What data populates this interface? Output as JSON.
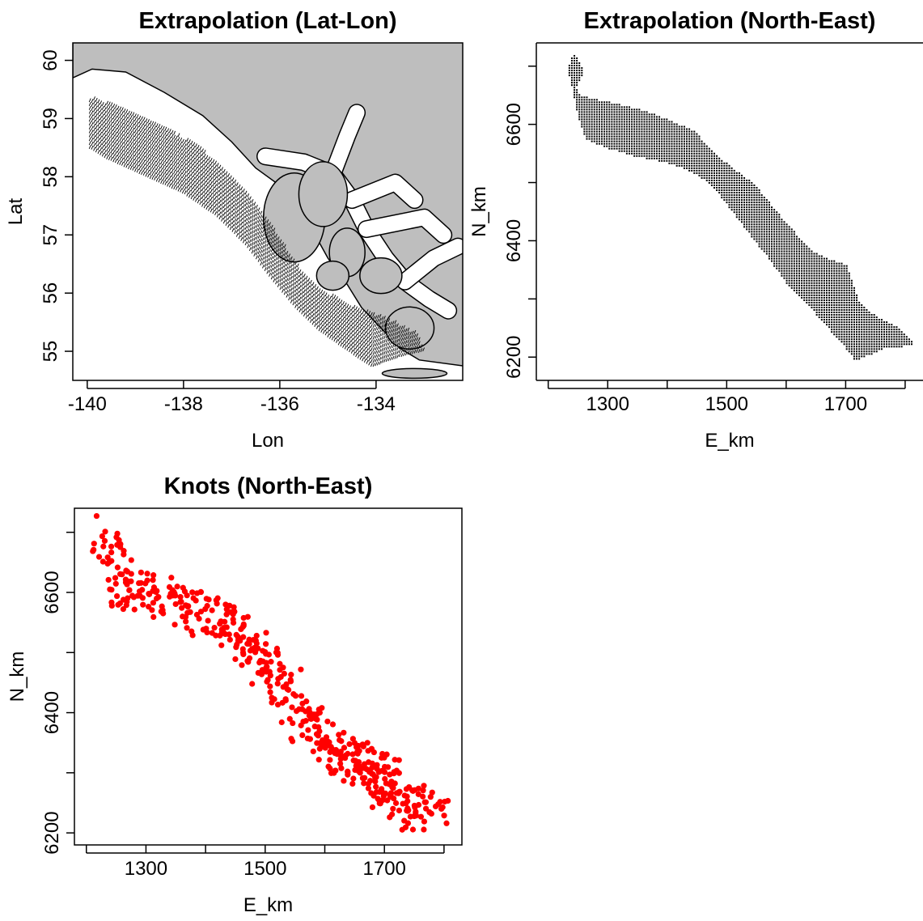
{
  "figure": {
    "background": "#ffffff",
    "land_color": "#bebebe",
    "fjord_color": "#ffffff",
    "extrapolation_color": "#000000",
    "knot_color": "#ff0000"
  },
  "chart_data": [
    {
      "id": "latlon",
      "type": "map",
      "title": "Extrapolation (Lat-Lon)",
      "xlabel": "Lon",
      "ylabel": "Lat",
      "xlim": [
        -140.3,
        -132.2
      ],
      "ylim": [
        54.5,
        60.3
      ],
      "xticks": [
        -140,
        -138,
        -136,
        -134
      ],
      "xtick_labels": [
        "-140",
        "-138",
        "-136",
        "-134"
      ],
      "yticks": [
        55,
        56,
        57,
        58,
        59,
        60
      ],
      "ytick_labels": [
        "55",
        "56",
        "57",
        "58",
        "59",
        "60"
      ],
      "description_free": true,
      "coastline": [
        [
          -140.3,
          59.7
        ],
        [
          -139.9,
          59.85
        ],
        [
          -139.2,
          59.8
        ],
        [
          -138.4,
          59.45
        ],
        [
          -137.6,
          59.05
        ],
        [
          -137.0,
          58.6
        ],
        [
          -136.5,
          58.15
        ],
        [
          -136.0,
          57.85
        ],
        [
          -135.6,
          57.5
        ],
        [
          -135.3,
          57.05
        ],
        [
          -135.0,
          56.6
        ],
        [
          -134.6,
          56.15
        ],
        [
          -134.3,
          55.75
        ],
        [
          -133.9,
          55.4
        ],
        [
          -133.5,
          55.05
        ],
        [
          -133.1,
          54.85
        ],
        [
          -132.2,
          54.75
        ]
      ],
      "domain_outline": [
        [
          -140.0,
          59.35
        ],
        [
          -139.4,
          59.2
        ],
        [
          -138.6,
          58.9
        ],
        [
          -137.8,
          58.55
        ],
        [
          -137.2,
          58.15
        ],
        [
          -136.7,
          57.7
        ],
        [
          -136.3,
          57.3
        ],
        [
          -136.0,
          56.9
        ],
        [
          -135.7,
          56.5
        ],
        [
          -135.2,
          56.05
        ],
        [
          -134.5,
          55.75
        ],
        [
          -133.8,
          55.55
        ],
        [
          -133.2,
          55.3
        ],
        [
          -133.0,
          55.0
        ],
        [
          -133.5,
          54.9
        ],
        [
          -134.1,
          54.72
        ],
        [
          -134.6,
          55.0
        ],
        [
          -135.2,
          55.35
        ],
        [
          -135.7,
          55.75
        ],
        [
          -136.2,
          56.25
        ],
        [
          -136.7,
          56.8
        ],
        [
          -137.3,
          57.3
        ],
        [
          -138.0,
          57.7
        ],
        [
          -138.8,
          58.0
        ],
        [
          -139.6,
          58.3
        ],
        [
          -140.0,
          58.5
        ]
      ]
    },
    {
      "id": "ne",
      "type": "scatter",
      "title": "Extrapolation (North-East)",
      "xlabel": "E_km",
      "ylabel": "N_km",
      "xlim": [
        1180,
        1830
      ],
      "ylim": [
        6160,
        6740
      ],
      "xticks": [
        1200,
        1300,
        1400,
        1500,
        1600,
        1700,
        1800
      ],
      "xtick_labels": [
        "",
        "1300",
        "",
        "1500",
        "",
        "1700",
        ""
      ],
      "yticks": [
        6200,
        6300,
        6400,
        6500,
        6600,
        6700
      ],
      "ytick_labels": [
        "6200",
        "",
        "6400",
        "",
        "6600",
        ""
      ],
      "domain_outline": [
        [
          1232,
          6695
        ],
        [
          1240,
          6725
        ],
        [
          1252,
          6708
        ],
        [
          1258,
          6690
        ],
        [
          1245,
          6665
        ],
        [
          1255,
          6650
        ],
        [
          1300,
          6640
        ],
        [
          1360,
          6625
        ],
        [
          1400,
          6610
        ],
        [
          1445,
          6590
        ],
        [
          1470,
          6560
        ],
        [
          1510,
          6525
        ],
        [
          1545,
          6500
        ],
        [
          1580,
          6455
        ],
        [
          1610,
          6420
        ],
        [
          1640,
          6385
        ],
        [
          1670,
          6370
        ],
        [
          1700,
          6360
        ],
        [
          1720,
          6300
        ],
        [
          1745,
          6275
        ],
        [
          1790,
          6250
        ],
        [
          1815,
          6225
        ],
        [
          1790,
          6218
        ],
        [
          1760,
          6215
        ],
        [
          1740,
          6205
        ],
        [
          1715,
          6195
        ],
        [
          1700,
          6215
        ],
        [
          1670,
          6250
        ],
        [
          1640,
          6285
        ],
        [
          1605,
          6320
        ],
        [
          1570,
          6370
        ],
        [
          1535,
          6415
        ],
        [
          1505,
          6455
        ],
        [
          1475,
          6495
        ],
        [
          1440,
          6520
        ],
        [
          1400,
          6535
        ],
        [
          1350,
          6545
        ],
        [
          1300,
          6560
        ],
        [
          1262,
          6575
        ],
        [
          1250,
          6610
        ],
        [
          1240,
          6660
        ]
      ]
    },
    {
      "id": "knots",
      "type": "scatter",
      "title": "Knots (North-East)",
      "xlabel": "E_km",
      "ylabel": "N_km",
      "xlim": [
        1180,
        1830
      ],
      "ylim": [
        6180,
        6740
      ],
      "xticks": [
        1200,
        1300,
        1400,
        1500,
        1600,
        1700,
        1800
      ],
      "xtick_labels": [
        "",
        "1300",
        "",
        "1500",
        "",
        "1700",
        ""
      ],
      "yticks": [
        6200,
        6300,
        6400,
        6500,
        6600,
        6700
      ],
      "ytick_labels": [
        "6200",
        "",
        "6400",
        "",
        "6600",
        ""
      ],
      "series_path": [
        [
          1240,
          6700
        ],
        [
          1250,
          6640
        ],
        [
          1265,
          6610
        ],
        [
          1290,
          6600
        ],
        [
          1320,
          6600
        ],
        [
          1350,
          6585
        ],
        [
          1380,
          6570
        ],
        [
          1410,
          6560
        ],
        [
          1440,
          6540
        ],
        [
          1470,
          6520
        ],
        [
          1490,
          6500
        ],
        [
          1510,
          6470
        ],
        [
          1530,
          6440
        ],
        [
          1550,
          6410
        ],
        [
          1570,
          6380
        ],
        [
          1590,
          6360
        ],
        [
          1610,
          6345
        ],
        [
          1630,
          6330
        ],
        [
          1650,
          6320
        ],
        [
          1670,
          6310
        ],
        [
          1690,
          6300
        ],
        [
          1705,
          6280
        ],
        [
          1720,
          6260
        ],
        [
          1740,
          6245
        ],
        [
          1760,
          6235
        ],
        [
          1790,
          6230
        ]
      ],
      "n_points": 500
    }
  ]
}
